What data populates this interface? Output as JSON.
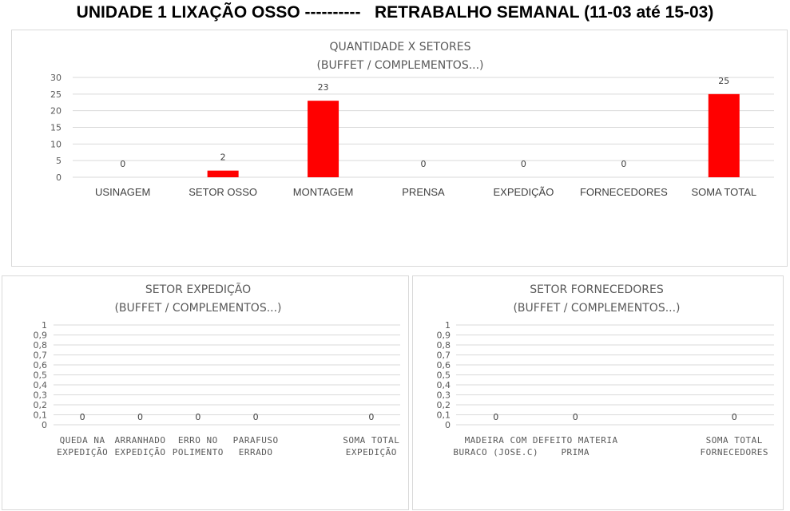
{
  "page": {
    "title": "UNIDADE 1 LIXAÇÃO OSSO ----------   RETRABALHO SEMANAL (11-03 até 15-03)"
  },
  "colors": {
    "bar": "#ff0000",
    "grid": "#d9d9d9",
    "text": "#595959"
  },
  "chart_data": [
    {
      "type": "bar",
      "title": "QUANTIDADE X SETORES",
      "subtitle": "(BUFFET / COMPLEMENTOS...)",
      "categories": [
        [
          "USINAGEM"
        ],
        [
          "SETOR OSSO"
        ],
        [
          "MONTAGEM"
        ],
        [
          "PRENSA"
        ],
        [
          "EXPEDIÇÃO"
        ],
        [
          "FORNECEDORES"
        ],
        [
          "SOMA TOTAL"
        ]
      ],
      "values": [
        0,
        2,
        23,
        0,
        0,
        0,
        25
      ],
      "data_labels": [
        "0",
        "2",
        "23",
        "0",
        "0",
        "0",
        "25"
      ],
      "yticks": [
        "0",
        "5",
        "10",
        "15",
        "20",
        "25",
        "30"
      ],
      "ylim": [
        0,
        30
      ],
      "grid": true,
      "legend": "none"
    },
    {
      "type": "bar",
      "title": "SETOR EXPEDIÇÃO",
      "subtitle": "(BUFFET / COMPLEMENTOS...)",
      "categories": [
        [
          "QUEDA NA",
          "EXPEDIÇÃO"
        ],
        [
          "ARRANHADO",
          "EXPEDIÇÃO"
        ],
        [
          "ERRO NO",
          "POLIMENTO"
        ],
        [
          "PARAFUSO",
          "ERRADO"
        ],
        [
          "",
          ""
        ],
        [
          "SOMA TOTAL",
          "EXPEDIÇÃO"
        ]
      ],
      "values": [
        0,
        0,
        0,
        0,
        null,
        0
      ],
      "data_labels": [
        "0",
        "0",
        "0",
        "0",
        "",
        "0"
      ],
      "yticks": [
        "0",
        "0,1",
        "0,2",
        "0,3",
        "0,4",
        "0,5",
        "0,6",
        "0,7",
        "0,8",
        "0,9",
        "1"
      ],
      "ylim": [
        0,
        1
      ],
      "grid": true,
      "legend": "none"
    },
    {
      "type": "bar",
      "title": "SETOR FORNECEDORES",
      "subtitle": "(BUFFET / COMPLEMENTOS...)",
      "categories": [
        [
          "MADEIRA COM",
          "BURACO (JOSE.C)"
        ],
        [
          "DEFEITO MATERIA",
          "PRIMA"
        ],
        [
          "",
          ""
        ],
        [
          "SOMA TOTAL",
          "FORNECEDORES"
        ]
      ],
      "values": [
        0,
        0,
        null,
        0
      ],
      "data_labels": [
        "0",
        "0",
        "",
        "0"
      ],
      "yticks": [
        "0",
        "0,1",
        "0,2",
        "0,3",
        "0,4",
        "0,5",
        "0,6",
        "0,7",
        "0,8",
        "0,9",
        "1"
      ],
      "ylim": [
        0,
        1
      ],
      "grid": true,
      "legend": "none"
    }
  ]
}
